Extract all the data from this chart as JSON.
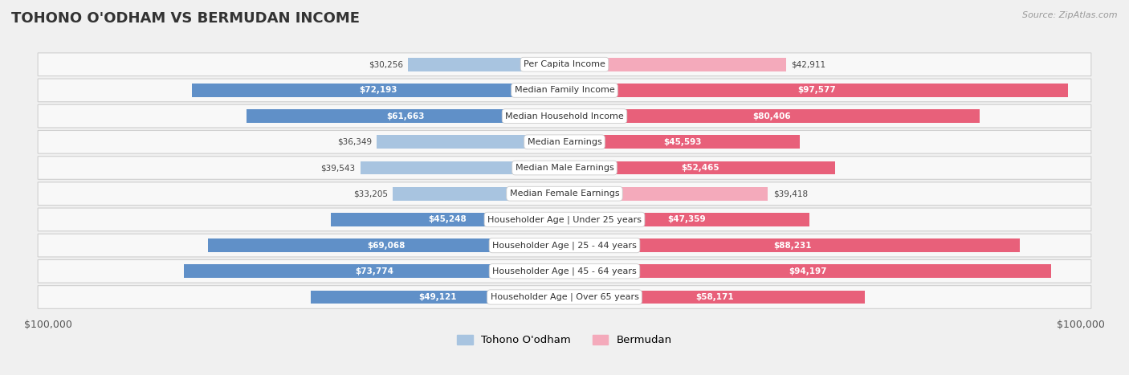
{
  "title": "TOHONO O'ODHAM VS BERMUDAN INCOME",
  "source": "Source: ZipAtlas.com",
  "categories": [
    "Per Capita Income",
    "Median Family Income",
    "Median Household Income",
    "Median Earnings",
    "Median Male Earnings",
    "Median Female Earnings",
    "Householder Age | Under 25 years",
    "Householder Age | 25 - 44 years",
    "Householder Age | 45 - 64 years",
    "Householder Age | Over 65 years"
  ],
  "tohono_values": [
    30256,
    72193,
    61663,
    36349,
    39543,
    33205,
    45248,
    69068,
    73774,
    49121
  ],
  "bermudan_values": [
    42911,
    97577,
    80406,
    45593,
    52465,
    39418,
    47359,
    88231,
    94197,
    58171
  ],
  "tohono_labels": [
    "$30,256",
    "$72,193",
    "$61,663",
    "$36,349",
    "$39,543",
    "$33,205",
    "$45,248",
    "$69,068",
    "$73,774",
    "$49,121"
  ],
  "bermudan_labels": [
    "$42,911",
    "$97,577",
    "$80,406",
    "$45,593",
    "$52,465",
    "$39,418",
    "$47,359",
    "$88,231",
    "$94,197",
    "$58,171"
  ],
  "tohono_color_light": "#a8c4e0",
  "tohono_color_dark": "#6090c8",
  "bermudan_color_light": "#f4aabb",
  "bermudan_color_dark": "#e8607a",
  "max_value": 100000,
  "threshold": 45000,
  "background_color": "#f0f0f0",
  "row_bg_color": "#f8f8f8",
  "legend_tohono": "Tohono O'odham",
  "legend_bermudan": "Bermudan",
  "xlabel_left": "$100,000",
  "xlabel_right": "$100,000"
}
